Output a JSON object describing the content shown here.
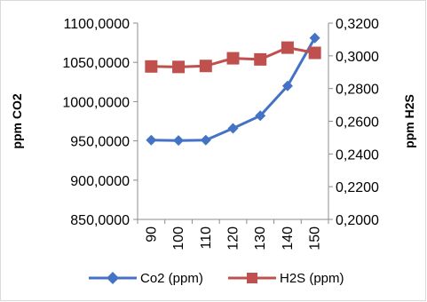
{
  "chart_data": {
    "type": "line",
    "categories": [
      "90",
      "100",
      "110",
      "120",
      "130",
      "140",
      "150"
    ],
    "series": [
      {
        "name": "Co2 (ppm)",
        "axis": "left",
        "color": "#4472c4",
        "marker": "diamond",
        "values": [
          951,
          950.5,
          951,
          966,
          982,
          1020,
          1081
        ]
      },
      {
        "name": "H2S (ppm)",
        "axis": "right",
        "color": "#c0504d",
        "marker": "square",
        "values": [
          0.2935,
          0.2932,
          0.2938,
          0.2985,
          0.2978,
          0.305,
          0.3018
        ]
      }
    ],
    "y_left": {
      "label": "ppm CO2",
      "ylim": [
        850,
        1100
      ],
      "ticks": [
        "1100,0000",
        "1050,0000",
        "1000,0000",
        "950,0000",
        "900,0000",
        "850,0000"
      ]
    },
    "y_right": {
      "label": "ppm H2S",
      "ylim": [
        0.2,
        0.32
      ],
      "ticks": [
        "0,3200",
        "0,3000",
        "0,2800",
        "0,2600",
        "0,2400",
        "0,2200",
        "0,2000"
      ]
    },
    "grid": false,
    "legend": "bottom"
  }
}
